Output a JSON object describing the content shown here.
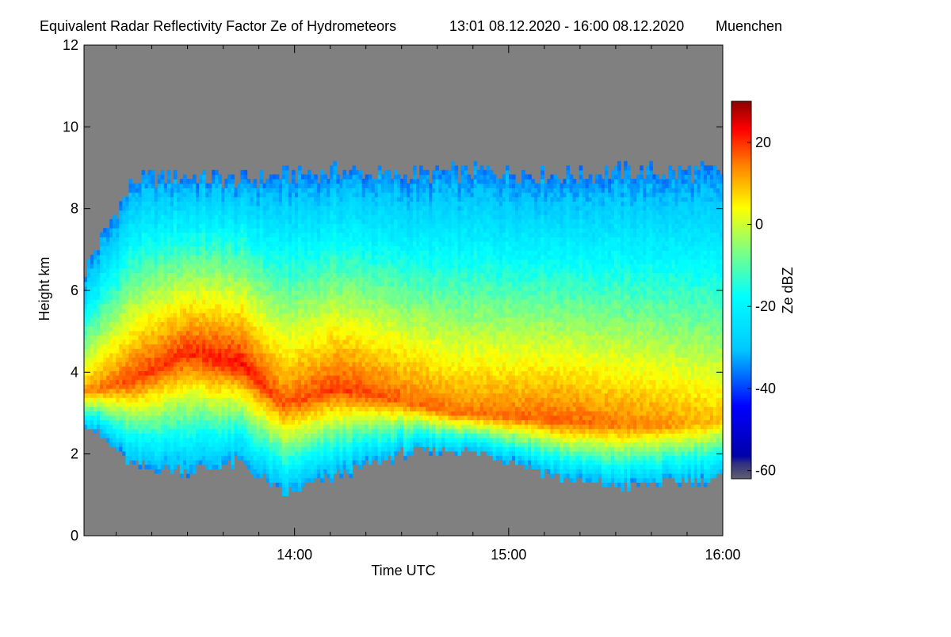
{
  "chart_data": {
    "type": "heatmap",
    "title": "Equivalent Radar Reflectivity Factor Ze of Hydrometeors",
    "time_range": "13:01 08.12.2020 - 16:00 08.12.2020",
    "location": "Muenchen",
    "xlabel": "Time UTC",
    "ylabel": "Height km",
    "xlim": [
      "13:01",
      "16:00"
    ],
    "ylim": [
      0,
      12
    ],
    "x_ticks": [
      "14:00",
      "15:00",
      "16:00"
    ],
    "y_ticks": [
      0,
      2,
      4,
      6,
      8,
      10,
      12
    ],
    "colorbar": {
      "label": "Ze dBZ",
      "range": [
        -62,
        30
      ],
      "ticks": [
        20,
        0,
        -20,
        -40,
        -60
      ]
    },
    "background_color": "#808080",
    "cloud": {
      "time_hours": [
        13.02,
        13.25,
        13.5,
        13.75,
        13.95,
        14.2,
        14.5,
        14.75,
        15.0,
        15.25,
        15.5,
        15.75,
        16.0
      ],
      "top_km": [
        6.5,
        8.7,
        8.8,
        8.7,
        8.8,
        8.9,
        8.8,
        8.9,
        8.9,
        8.8,
        8.9,
        8.9,
        8.9
      ],
      "base_km": [
        2.8,
        1.7,
        1.6,
        1.8,
        1.0,
        1.5,
        2.0,
        2.1,
        1.9,
        1.4,
        1.2,
        1.3,
        1.4
      ],
      "core_km": [
        3.5,
        3.8,
        4.5,
        4.2,
        3.2,
        3.6,
        3.3,
        3.0,
        2.9,
        2.8,
        2.7,
        2.7,
        2.8
      ],
      "max_dBZ": [
        12,
        18,
        20,
        22,
        16,
        19,
        16,
        14,
        15,
        16,
        14,
        12,
        8
      ]
    }
  }
}
